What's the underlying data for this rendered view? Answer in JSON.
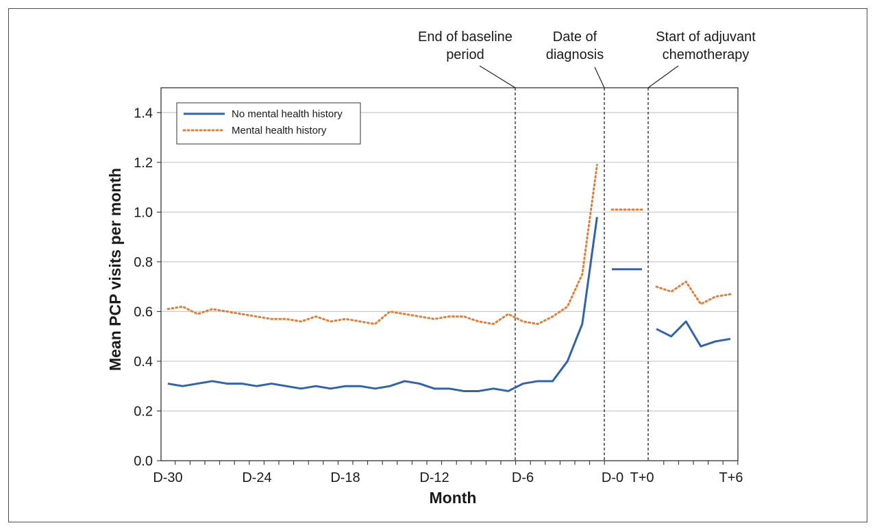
{
  "chart_data": {
    "type": "line",
    "xlabel": "Month",
    "ylabel": "Mean PCP visits per month",
    "ylim": [
      0,
      1.5
    ],
    "yticks": [
      "0.0",
      "0.2",
      "0.4",
      "0.6",
      "0.8",
      "1.0",
      "1.2",
      "1.4"
    ],
    "xticks": [
      "D-30",
      "D-24",
      "D-18",
      "D-12",
      "D-6",
      "D-0",
      "T+0",
      "T+6"
    ],
    "grid": "horizontal",
    "legend_position": "top-left",
    "series": [
      {
        "name": "No mental health history",
        "color": "#2f63ad",
        "style": "solid",
        "segments": [
          {
            "x": [
              -30,
              -29,
              -28,
              -27,
              -26,
              -25,
              -24,
              -23,
              -22,
              -21,
              -20,
              -19,
              -18,
              -17,
              -16,
              -15,
              -14,
              -13,
              -12,
              -11,
              -10,
              -9,
              -8,
              -7,
              -6,
              -5,
              -4,
              -3,
              -2,
              -1,
              0
            ],
            "y": [
              0.31,
              0.3,
              0.31,
              0.32,
              0.31,
              0.31,
              0.3,
              0.31,
              0.3,
              0.29,
              0.3,
              0.29,
              0.3,
              0.3,
              0.29,
              0.3,
              0.32,
              0.31,
              0.29,
              0.29,
              0.28,
              0.28,
              0.29,
              0.28,
              0.31,
              0.32,
              0.32,
              0.4,
              0.55,
              0.98,
              null
            ]
          },
          {
            "x_label": "D-0 to T+0",
            "y": [
              0.77
            ]
          },
          {
            "x": [
              0,
              1,
              2,
              3,
              4,
              5,
              6
            ],
            "y": [
              0.53,
              0.5,
              0.56,
              0.46,
              0.48,
              0.49,
              null
            ]
          }
        ]
      },
      {
        "name": "Mental health history",
        "color": "#e27d36",
        "style": "dotted",
        "segments": [
          {
            "x": [
              -30,
              -29,
              -28,
              -27,
              -26,
              -25,
              -24,
              -23,
              -22,
              -21,
              -20,
              -19,
              -18,
              -17,
              -16,
              -15,
              -14,
              -13,
              -12,
              -11,
              -10,
              -9,
              -8,
              -7,
              -6,
              -5,
              -4,
              -3,
              -2,
              -1,
              0
            ],
            "y": [
              0.61,
              0.62,
              0.59,
              0.61,
              0.6,
              0.59,
              0.58,
              0.57,
              0.57,
              0.56,
              0.58,
              0.56,
              0.57,
              0.56,
              0.55,
              0.6,
              0.59,
              0.58,
              0.57,
              0.58,
              0.58,
              0.56,
              0.55,
              0.59,
              0.56,
              0.55,
              0.58,
              0.62,
              0.75,
              1.19,
              null
            ]
          },
          {
            "x_label": "D-0 to T+0",
            "y": [
              1.01
            ]
          },
          {
            "x": [
              0,
              1,
              2,
              3,
              4,
              5,
              6
            ],
            "y": [
              0.7,
              0.68,
              0.72,
              0.63,
              0.66,
              0.67,
              null
            ]
          }
        ]
      }
    ],
    "annotations": [
      {
        "label_lines": [
          "End of baseline",
          "period"
        ],
        "at": "D-6"
      },
      {
        "label_lines": [
          "Date of",
          "diagnosis"
        ],
        "at": "D-0"
      },
      {
        "label_lines": [
          "Start of adjuvant",
          "chemotherapy"
        ],
        "at": "T+0"
      }
    ]
  }
}
